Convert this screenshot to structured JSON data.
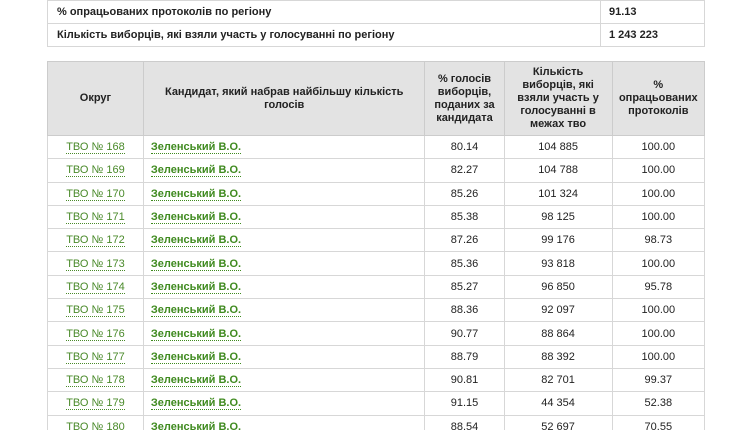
{
  "summary": [
    {
      "label": "% опрацьованих протоколів по регіону",
      "value": "91.13"
    },
    {
      "label": "Кількість виборців, які взяли участь у голосуванні по регіону",
      "value": "1 243 223"
    }
  ],
  "table": {
    "headers": {
      "okrug": "Округ",
      "candidate": "Кандидат, який набрав найбільшу кількість голосів",
      "pct_votes": "% голосів виборців, поданих за кандидата",
      "voters": "Кількість виборців, які взяли участь у голосуванні в межах тво",
      "processed": "% опрацьованих протоколів"
    },
    "rows": [
      {
        "okrug": "ТВО № 168",
        "candidate": "Зеленський В.О.",
        "pct": "80.14",
        "voters": "104 885",
        "processed": "100.00"
      },
      {
        "okrug": "ТВО № 169",
        "candidate": "Зеленський В.О.",
        "pct": "82.27",
        "voters": "104 788",
        "processed": "100.00"
      },
      {
        "okrug": "ТВО № 170",
        "candidate": "Зеленський В.О.",
        "pct": "85.26",
        "voters": "101 324",
        "processed": "100.00"
      },
      {
        "okrug": "ТВО № 171",
        "candidate": "Зеленський В.О.",
        "pct": "85.38",
        "voters": "98 125",
        "processed": "100.00"
      },
      {
        "okrug": "ТВО № 172",
        "candidate": "Зеленський В.О.",
        "pct": "87.26",
        "voters": "99 176",
        "processed": "98.73"
      },
      {
        "okrug": "ТВО № 173",
        "candidate": "Зеленський В.О.",
        "pct": "85.36",
        "voters": "93 818",
        "processed": "100.00"
      },
      {
        "okrug": "ТВО № 174",
        "candidate": "Зеленський В.О.",
        "pct": "85.27",
        "voters": "96 850",
        "processed": "95.78"
      },
      {
        "okrug": "ТВО № 175",
        "candidate": "Зеленський В.О.",
        "pct": "88.36",
        "voters": "92 097",
        "processed": "100.00"
      },
      {
        "okrug": "ТВО № 176",
        "candidate": "Зеленський В.О.",
        "pct": "90.77",
        "voters": "88 864",
        "processed": "100.00"
      },
      {
        "okrug": "ТВО № 177",
        "candidate": "Зеленський В.О.",
        "pct": "88.79",
        "voters": "88 392",
        "processed": "100.00"
      },
      {
        "okrug": "ТВО № 178",
        "candidate": "Зеленський В.О.",
        "pct": "90.81",
        "voters": "82 701",
        "processed": "99.37"
      },
      {
        "okrug": "ТВО № 179",
        "candidate": "Зеленський В.О.",
        "pct": "91.15",
        "voters": "44 354",
        "processed": "52.38"
      },
      {
        "okrug": "ТВО № 180",
        "candidate": "Зеленський В.О.",
        "pct": "88.54",
        "voters": "52 697",
        "processed": "70.55"
      }
    ]
  }
}
